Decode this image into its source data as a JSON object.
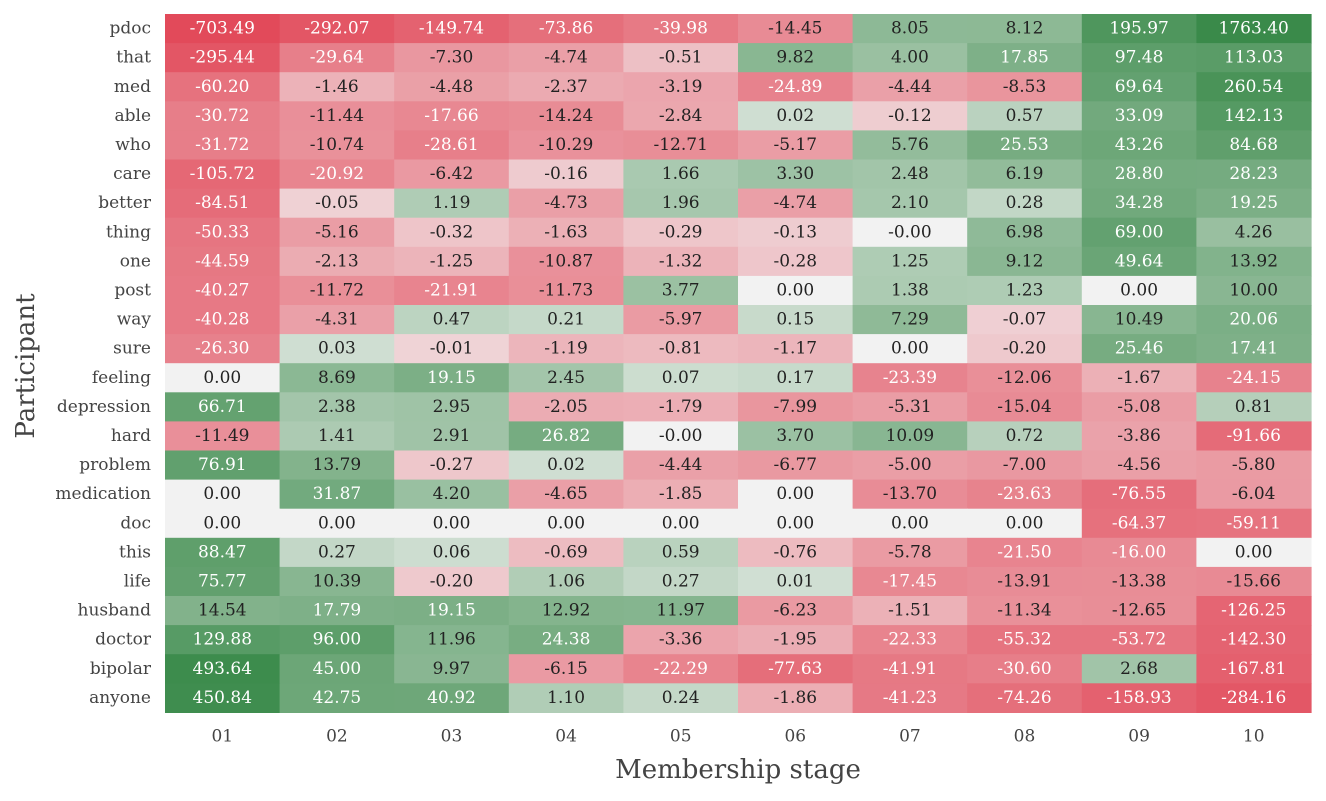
{
  "chart_data": {
    "type": "heatmap",
    "xlabel": "Membership stage",
    "ylabel": "Participant",
    "columns": [
      "01",
      "02",
      "03",
      "04",
      "05",
      "06",
      "07",
      "08",
      "09",
      "10"
    ],
    "rows": [
      "pdoc",
      "that",
      "med",
      "able",
      "who",
      "care",
      "better",
      "thing",
      "one",
      "post",
      "way",
      "sure",
      "feeling",
      "depression",
      "hard",
      "problem",
      "medication",
      "doc",
      "this",
      "life",
      "husband",
      "doctor",
      "bipolar",
      "anyone"
    ],
    "cell_labels": [
      [
        "-703.49",
        "-292.07",
        "-149.74",
        "-73.86",
        "-39.98",
        "-14.45",
        "8.05",
        "8.12",
        "195.97",
        "1763.40"
      ],
      [
        "-295.44",
        "-29.64",
        "-7.30",
        "-4.74",
        "-0.51",
        "9.82",
        "4.00",
        "17.85",
        "97.48",
        "113.03"
      ],
      [
        "-60.20",
        "-1.46",
        "-4.48",
        "-2.37",
        "-3.19",
        "-24.89",
        "-4.44",
        "-8.53",
        "69.64",
        "260.54"
      ],
      [
        "-30.72",
        "-11.44",
        "-17.66",
        "-14.24",
        "-2.84",
        "0.02",
        "-0.12",
        "0.57",
        "33.09",
        "142.13"
      ],
      [
        "-31.72",
        "-10.74",
        "-28.61",
        "-10.29",
        "-12.71",
        "-5.17",
        "5.76",
        "25.53",
        "43.26",
        "84.68"
      ],
      [
        "-105.72",
        "-20.92",
        "-6.42",
        "-0.16",
        "1.66",
        "3.30",
        "2.48",
        "6.19",
        "28.80",
        "28.23"
      ],
      [
        "-84.51",
        "-0.05",
        "1.19",
        "-4.73",
        "1.96",
        "-4.74",
        "2.10",
        "0.28",
        "34.28",
        "19.25"
      ],
      [
        "-50.33",
        "-5.16",
        "-0.32",
        "-1.63",
        "-0.29",
        "-0.13",
        "-0.00",
        "6.98",
        "69.00",
        "4.26"
      ],
      [
        "-44.59",
        "-2.13",
        "-1.25",
        "-10.87",
        "-1.32",
        "-0.28",
        "1.25",
        "9.12",
        "49.64",
        "13.92"
      ],
      [
        "-40.27",
        "-11.72",
        "-21.91",
        "-11.73",
        "3.77",
        "0.00",
        "1.38",
        "1.23",
        "0.00",
        "10.00"
      ],
      [
        "-40.28",
        "-4.31",
        "0.47",
        "0.21",
        "-5.97",
        "0.15",
        "7.29",
        "-0.07",
        "10.49",
        "20.06"
      ],
      [
        "-26.30",
        "0.03",
        "-0.01",
        "-1.19",
        "-0.81",
        "-1.17",
        "0.00",
        "-0.20",
        "25.46",
        "17.41"
      ],
      [
        "0.00",
        "8.69",
        "19.15",
        "2.45",
        "0.07",
        "0.17",
        "-23.39",
        "-12.06",
        "-1.67",
        "-24.15"
      ],
      [
        "66.71",
        "2.38",
        "2.95",
        "-2.05",
        "-1.79",
        "-7.99",
        "-5.31",
        "-15.04",
        "-5.08",
        "0.81"
      ],
      [
        "-11.49",
        "1.41",
        "2.91",
        "26.82",
        "-0.00",
        "3.70",
        "10.09",
        "0.72",
        "-3.86",
        "-91.66"
      ],
      [
        "76.91",
        "13.79",
        "-0.27",
        "0.02",
        "-4.44",
        "-6.77",
        "-5.00",
        "-7.00",
        "-4.56",
        "-5.80"
      ],
      [
        "0.00",
        "31.87",
        "4.20",
        "-4.65",
        "-1.85",
        "0.00",
        "-13.70",
        "-23.63",
        "-76.55",
        "-6.04"
      ],
      [
        "0.00",
        "0.00",
        "0.00",
        "0.00",
        "0.00",
        "0.00",
        "0.00",
        "0.00",
        "-64.37",
        "-59.11"
      ],
      [
        "88.47",
        "0.27",
        "0.06",
        "-0.69",
        "0.59",
        "-0.76",
        "-5.78",
        "-21.50",
        "-16.00",
        "0.00"
      ],
      [
        "75.77",
        "10.39",
        "-0.20",
        "1.06",
        "0.27",
        "0.01",
        "-17.45",
        "-13.91",
        "-13.38",
        "-15.66"
      ],
      [
        "14.54",
        "17.79",
        "19.15",
        "12.92",
        "11.97",
        "-6.23",
        "-1.51",
        "-11.34",
        "-12.65",
        "-126.25"
      ],
      [
        "129.88",
        "96.00",
        "11.96",
        "24.38",
        "-3.36",
        "-1.95",
        "-22.33",
        "-55.32",
        "-53.72",
        "-142.30"
      ],
      [
        "493.64",
        "45.00",
        "9.97",
        "-6.15",
        "-22.29",
        "-77.63",
        "-41.91",
        "-30.60",
        "2.68",
        "-167.81"
      ],
      [
        "450.84",
        "42.75",
        "40.92",
        "1.10",
        "0.24",
        "-1.86",
        "-41.23",
        "-74.26",
        "-158.93",
        "-284.16"
      ]
    ],
    "colormap": {
      "negative": "#e24a5a",
      "center": "#f2f2f2",
      "positive": "#3a8a4a",
      "label_dark": "#222222",
      "label_light": "#ffffff"
    },
    "grid": false,
    "legend": "none"
  }
}
